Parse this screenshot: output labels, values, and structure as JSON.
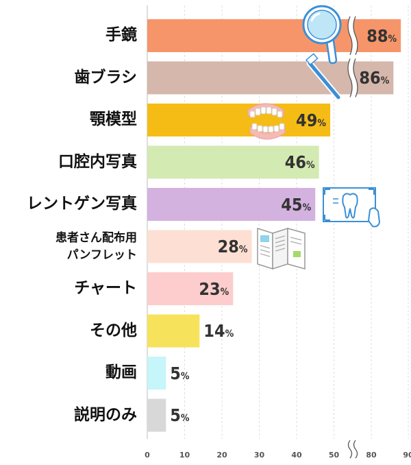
{
  "chart_data": {
    "type": "bar",
    "orientation": "horizontal",
    "categories": [
      "手鏡",
      "歯ブラシ",
      "顎模型",
      "口腔内写真",
      "レントゲン写真",
      "患者さん配布用パンフレット",
      "チャート",
      "その他",
      "動画",
      "説明のみ"
    ],
    "category_lines": [
      [
        "手鏡"
      ],
      [
        "歯ブラシ"
      ],
      [
        "顎模型"
      ],
      [
        "口腔内写真"
      ],
      [
        "レントゲン写真"
      ],
      [
        "患者さん配布用",
        "パンフレット"
      ],
      [
        "チャート"
      ],
      [
        "その他"
      ],
      [
        "動画"
      ],
      [
        "説明のみ"
      ]
    ],
    "values": [
      88,
      86,
      49,
      46,
      45,
      28,
      23,
      14,
      5,
      5
    ],
    "value_labels": [
      "88",
      "86",
      "49",
      "46",
      "45",
      "28",
      "23",
      "14",
      "5",
      "5"
    ],
    "value_suffix": "%",
    "colors": [
      "#f6956a",
      "#d6b7ab",
      "#f5bc16",
      "#d4eab3",
      "#d3b2e0",
      "#fde0d3",
      "#fdcdcd",
      "#f7e35b",
      "#c6f5fa",
      "#d8d8d8"
    ],
    "x_ticks": [
      0,
      10,
      20,
      30,
      40,
      50,
      80,
      90
    ],
    "x_tick_labels": [
      "0",
      "10",
      "20",
      "30",
      "40",
      "50",
      "80",
      "90"
    ],
    "axis_break": true,
    "grid": true,
    "title": "",
    "xlabel": "",
    "ylabel": "",
    "icons": [
      "hand-mirror-icon",
      "toothbrush-icon",
      "jaw-model-icon",
      "xray-tooth-icon",
      "pamphlet-icon"
    ]
  }
}
